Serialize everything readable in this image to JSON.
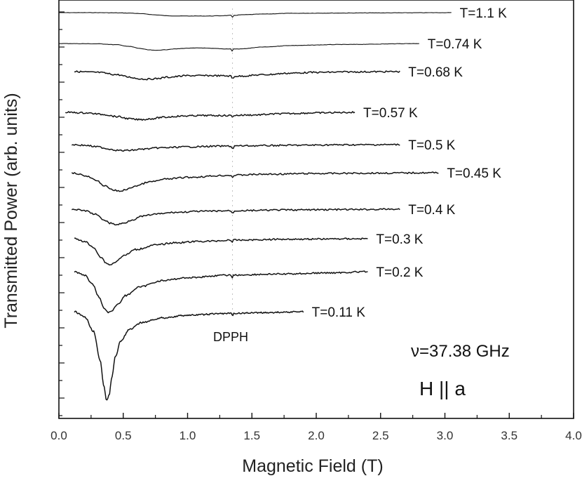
{
  "chart_data": {
    "type": "line",
    "title": "",
    "xlabel": "Magnetic Field (T)",
    "ylabel": "Transmitted Power (arb. units)",
    "xlim": [
      0.0,
      4.0
    ],
    "xticks": [
      "0.0",
      "0.5",
      "1.0",
      "1.5",
      "2.0",
      "2.5",
      "3.0",
      "3.5",
      "4.0"
    ],
    "yticks_labeled": false,
    "grid": false,
    "annotations": {
      "marker": "DPPH",
      "marker_field": 1.35,
      "frequency": "ν=37.38 GHz",
      "orientation": "H || a"
    },
    "series": [
      {
        "name": "T=1.1 K",
        "x": [
          0.0,
          0.3,
          0.45,
          0.55,
          0.65,
          0.75,
          0.85,
          0.95,
          1.05,
          1.15,
          1.25,
          1.35,
          1.45,
          1.6,
          1.8,
          2.1,
          2.5,
          3.05
        ],
        "y": [
          0.0,
          0.0,
          -0.01,
          -0.02,
          -0.05,
          -0.1,
          -0.14,
          -0.15,
          -0.15,
          -0.15,
          -0.14,
          -0.12,
          -0.09,
          -0.06,
          -0.03,
          -0.02,
          -0.01,
          0.0
        ]
      },
      {
        "name": "T=0.74 K",
        "x": [
          0.0,
          0.3,
          0.45,
          0.55,
          0.63,
          0.7,
          0.75,
          0.8,
          0.9,
          1.0,
          1.1,
          1.2,
          1.3,
          1.4,
          1.6,
          1.8,
          2.2,
          2.8
        ],
        "y": [
          0.0,
          -0.01,
          -0.05,
          -0.12,
          -0.2,
          -0.26,
          -0.28,
          -0.26,
          -0.22,
          -0.19,
          -0.18,
          -0.2,
          -0.22,
          -0.22,
          -0.14,
          -0.08,
          -0.04,
          0.0
        ]
      },
      {
        "name": "T=0.68 K",
        "x": [
          0.12,
          0.3,
          0.45,
          0.55,
          0.62,
          0.68,
          0.75,
          0.85,
          1.0,
          1.2,
          1.4,
          1.6,
          1.8,
          2.0,
          2.3,
          2.65
        ],
        "y": [
          0.0,
          -0.03,
          -0.12,
          -0.22,
          -0.28,
          -0.3,
          -0.28,
          -0.22,
          -0.16,
          -0.16,
          -0.18,
          -0.12,
          -0.06,
          -0.03,
          -0.01,
          0.0
        ]
      },
      {
        "name": "T=0.57 K",
        "x": [
          0.05,
          0.2,
          0.35,
          0.45,
          0.55,
          0.6,
          0.65,
          0.72,
          0.8,
          0.95,
          1.1,
          1.3,
          1.5,
          1.75,
          2.0,
          2.3
        ],
        "y": [
          0.0,
          -0.02,
          -0.08,
          -0.16,
          -0.24,
          -0.27,
          -0.27,
          -0.24,
          -0.19,
          -0.14,
          -0.12,
          -0.12,
          -0.1,
          -0.05,
          -0.02,
          0.0
        ]
      },
      {
        "name": "T=0.5 K",
        "x": [
          0.1,
          0.2,
          0.3,
          0.4,
          0.45,
          0.5,
          0.56,
          0.65,
          0.8,
          1.0,
          1.25,
          1.5,
          1.8,
          2.2,
          2.65
        ],
        "y": [
          0.0,
          -0.03,
          -0.1,
          -0.2,
          -0.25,
          -0.27,
          -0.25,
          -0.2,
          -0.14,
          -0.1,
          -0.07,
          -0.05,
          -0.03,
          -0.01,
          0.0
        ]
      },
      {
        "name": "T=0.45 K",
        "x": [
          0.1,
          0.15,
          0.22,
          0.3,
          0.36,
          0.42,
          0.47,
          0.52,
          0.6,
          0.7,
          0.85,
          1.0,
          1.3,
          1.6,
          2.0,
          2.5,
          2.95
        ],
        "y": [
          0.0,
          -0.03,
          -0.1,
          -0.22,
          -0.35,
          -0.45,
          -0.48,
          -0.44,
          -0.34,
          -0.24,
          -0.16,
          -0.12,
          -0.07,
          -0.04,
          -0.02,
          -0.01,
          0.0
        ]
      },
      {
        "name": "T=0.4 K",
        "x": [
          0.1,
          0.2,
          0.28,
          0.35,
          0.4,
          0.45,
          0.5,
          0.57,
          0.65,
          0.75,
          0.9,
          1.1,
          1.4,
          1.8,
          2.2,
          2.65
        ],
        "y": [
          0.0,
          -0.04,
          -0.14,
          -0.3,
          -0.4,
          -0.44,
          -0.4,
          -0.3,
          -0.2,
          -0.14,
          -0.09,
          -0.06,
          -0.04,
          -0.02,
          -0.01,
          0.0
        ]
      },
      {
        "name": "T=0.3 K",
        "x": [
          0.12,
          0.2,
          0.27,
          0.33,
          0.37,
          0.4,
          0.44,
          0.5,
          0.6,
          0.75,
          0.9,
          1.1,
          1.4,
          1.8,
          2.4
        ],
        "y": [
          0.0,
          -0.06,
          -0.2,
          -0.42,
          -0.55,
          -0.58,
          -0.52,
          -0.38,
          -0.24,
          -0.14,
          -0.09,
          -0.06,
          -0.03,
          -0.01,
          0.0
        ]
      },
      {
        "name": "T=0.2 K",
        "x": [
          0.12,
          0.2,
          0.26,
          0.31,
          0.35,
          0.38,
          0.41,
          0.45,
          0.52,
          0.62,
          0.8,
          1.0,
          1.3,
          1.7,
          2.1,
          2.4
        ],
        "y": [
          0.0,
          -0.06,
          -0.2,
          -0.42,
          -0.6,
          -0.68,
          -0.66,
          -0.56,
          -0.4,
          -0.26,
          -0.15,
          -0.1,
          -0.06,
          -0.04,
          -0.02,
          0.0
        ]
      },
      {
        "name": "T=0.11 K",
        "x": [
          0.12,
          0.2,
          0.27,
          0.32,
          0.35,
          0.37,
          0.39,
          0.41,
          0.44,
          0.48,
          0.55,
          0.65,
          0.8,
          1.0,
          1.3,
          1.6,
          1.9
        ],
        "y": [
          0.0,
          -0.06,
          -0.22,
          -0.55,
          -0.85,
          -1.0,
          -0.95,
          -0.75,
          -0.5,
          -0.33,
          -0.2,
          -0.12,
          -0.07,
          -0.04,
          -0.02,
          -0.01,
          0.0
        ]
      }
    ]
  }
}
